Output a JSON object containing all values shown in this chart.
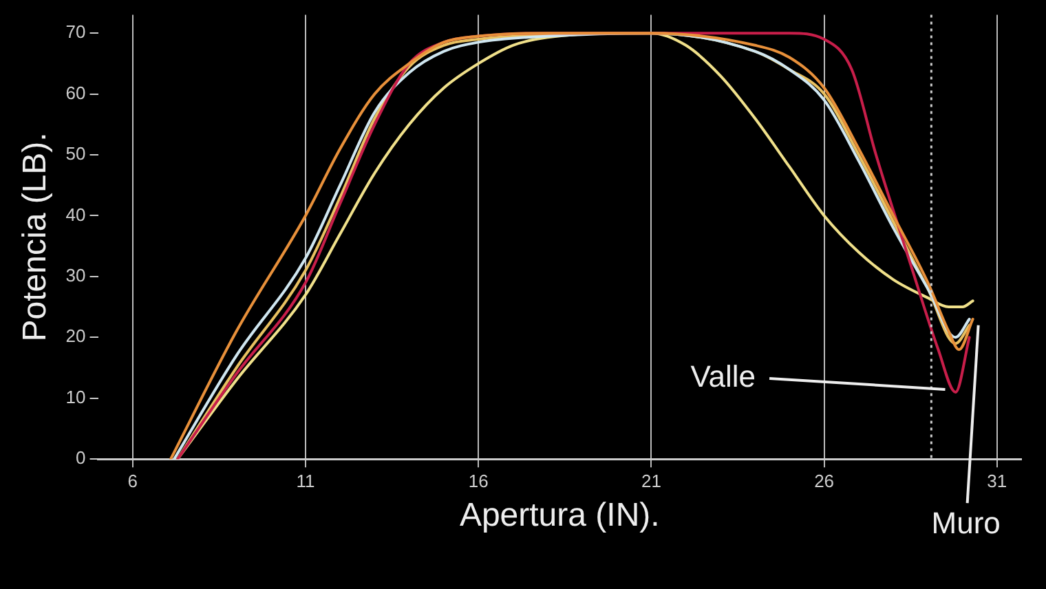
{
  "chart_data": {
    "type": "line",
    "xlabel": "Apertura (IN).",
    "ylabel": "Potencia (LB).",
    "xlim": [
      5,
      31.7
    ],
    "ylim": [
      0,
      73
    ],
    "xticks": [
      6,
      11,
      16,
      21,
      26,
      31
    ],
    "yticks": [
      0,
      10,
      20,
      30,
      40,
      50,
      60,
      70
    ],
    "grid": "x",
    "marker": "none",
    "line_style": "solid",
    "series": [
      {
        "color": "#e8903a",
        "x": [
          7.1,
          9,
          11,
          12,
          13,
          14,
          15,
          16,
          18,
          21,
          24,
          25,
          26,
          27,
          28,
          29,
          29.6,
          29.9,
          30.3
        ],
        "values": [
          0,
          21,
          40,
          51,
          60,
          65,
          68.5,
          69.5,
          70,
          70,
          68,
          66,
          61,
          51,
          40,
          29,
          21,
          18,
          23
        ]
      },
      {
        "color": "#c81e4a",
        "x": [
          7.3,
          9,
          11,
          12,
          13,
          14,
          15,
          16,
          18,
          21,
          25,
          26,
          26.8,
          27.5,
          28.5,
          29.3,
          29.8,
          30.2
        ],
        "values": [
          0,
          14,
          29,
          42,
          55,
          65,
          68.5,
          69.5,
          70,
          70,
          70,
          69,
          64,
          50,
          32,
          18,
          11,
          20
        ]
      },
      {
        "color": "#cfe6f0",
        "x": [
          7.2,
          9,
          11,
          12,
          13,
          14,
          15,
          16,
          18,
          21,
          24,
          25,
          26,
          27,
          28,
          29,
          29.8,
          30.2
        ],
        "values": [
          0,
          17,
          33,
          45,
          57,
          63.5,
          67,
          68.5,
          69.5,
          70,
          67,
          64,
          59,
          49,
          38,
          28,
          20,
          23
        ]
      },
      {
        "color": "#e8c060",
        "x": [
          7.3,
          9,
          11,
          12,
          13,
          14,
          15,
          16,
          18,
          21,
          24,
          25,
          26,
          27,
          28,
          29,
          29.8,
          30.2
        ],
        "values": [
          0,
          15,
          31,
          43,
          56,
          64.5,
          68,
          69,
          69.8,
          70,
          67,
          64,
          60,
          50,
          39,
          28,
          19,
          22
        ]
      },
      {
        "color": "#f0e08a",
        "x": [
          7.3,
          9,
          11,
          12,
          13,
          14,
          15,
          16,
          17,
          18,
          20,
          21,
          22,
          23,
          24,
          25,
          26,
          27,
          28,
          29,
          29.6,
          30,
          30.3
        ],
        "values": [
          0,
          13,
          27,
          37,
          47,
          55,
          61,
          65,
          68,
          69.3,
          70,
          70,
          68,
          63,
          56,
          48,
          40,
          34,
          29.5,
          26.5,
          25,
          25,
          26
        ]
      }
    ],
    "ref_lines": [
      {
        "axis": "x",
        "value": 29.1,
        "color": "#cccccc",
        "line_style": "dotted"
      }
    ],
    "annotations": [
      {
        "text": "Valle",
        "x": 29.7,
        "y": 11
      },
      {
        "text": "Muro",
        "x": 30.3,
        "y": 22
      }
    ]
  }
}
